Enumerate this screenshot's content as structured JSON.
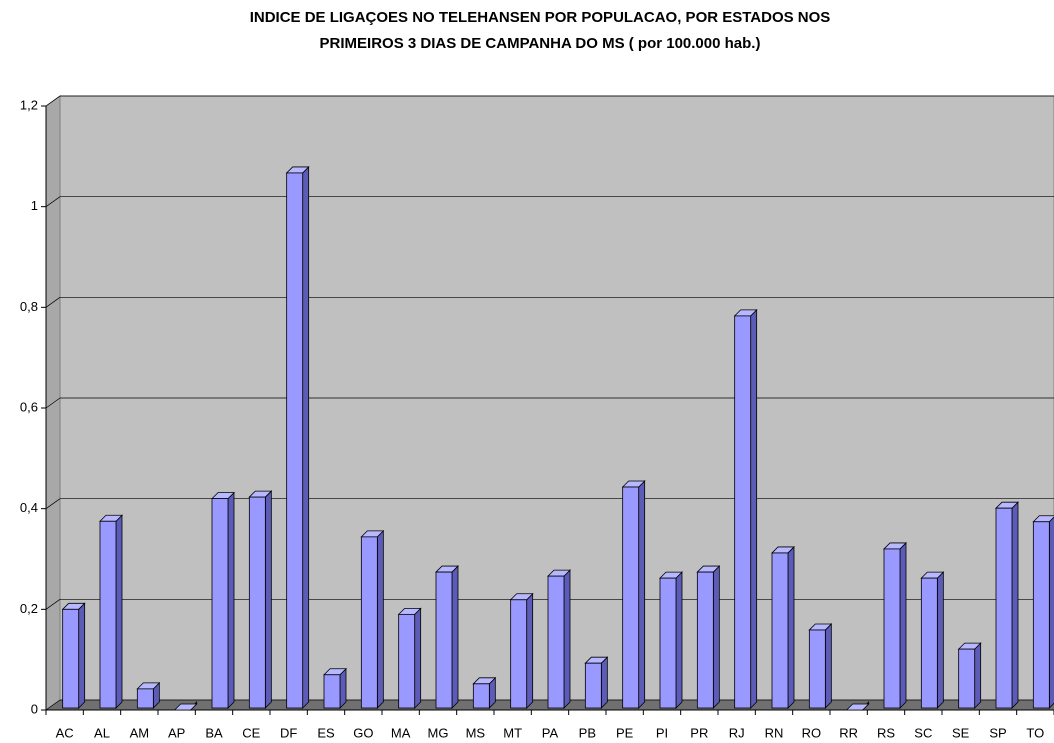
{
  "chart_data": {
    "type": "bar3d",
    "title": [
      "INDICE DE LIGAÇOES NO TELEHANSEN POR POPULACAO, POR ESTADOS NOS",
      "PRIMEIROS 3 DIAS DE CAMPANHA DO MS ( por 100.000 hab.)"
    ],
    "categories": [
      "AC",
      "AL",
      "AM",
      "AP",
      "BA",
      "CE",
      "DF",
      "ES",
      "GO",
      "MA",
      "MG",
      "MS",
      "MT",
      "PA",
      "PB",
      "PE",
      "PI",
      "PR",
      "RJ",
      "RN",
      "RO",
      "RR",
      "RS",
      "SC",
      "SE",
      "SP",
      "TO"
    ],
    "values": [
      0.2,
      0.375,
      0.042,
      0,
      0.42,
      0.423,
      1.067,
      0.07,
      0.344,
      0.19,
      0.274,
      0.052,
      0.219,
      0.266,
      0.093,
      0.443,
      0.262,
      0.274,
      0.783,
      0.312,
      0.159,
      0,
      0.32,
      0.262,
      0.121,
      0.401,
      0.374
    ],
    "color": "#9999ff",
    "ylim": [
      0,
      1.2
    ],
    "yticks": [
      0,
      {
        "value": 0.2,
        "label": "0,2"
      },
      {
        "value": 0.4,
        "label": "0,4"
      },
      {
        "value": 0.6,
        "label": "0,6"
      },
      {
        "value": 0.8,
        "label": "0,8"
      },
      1,
      {
        "value": 1.2,
        "label": "1,2"
      }
    ],
    "grid": true
  }
}
